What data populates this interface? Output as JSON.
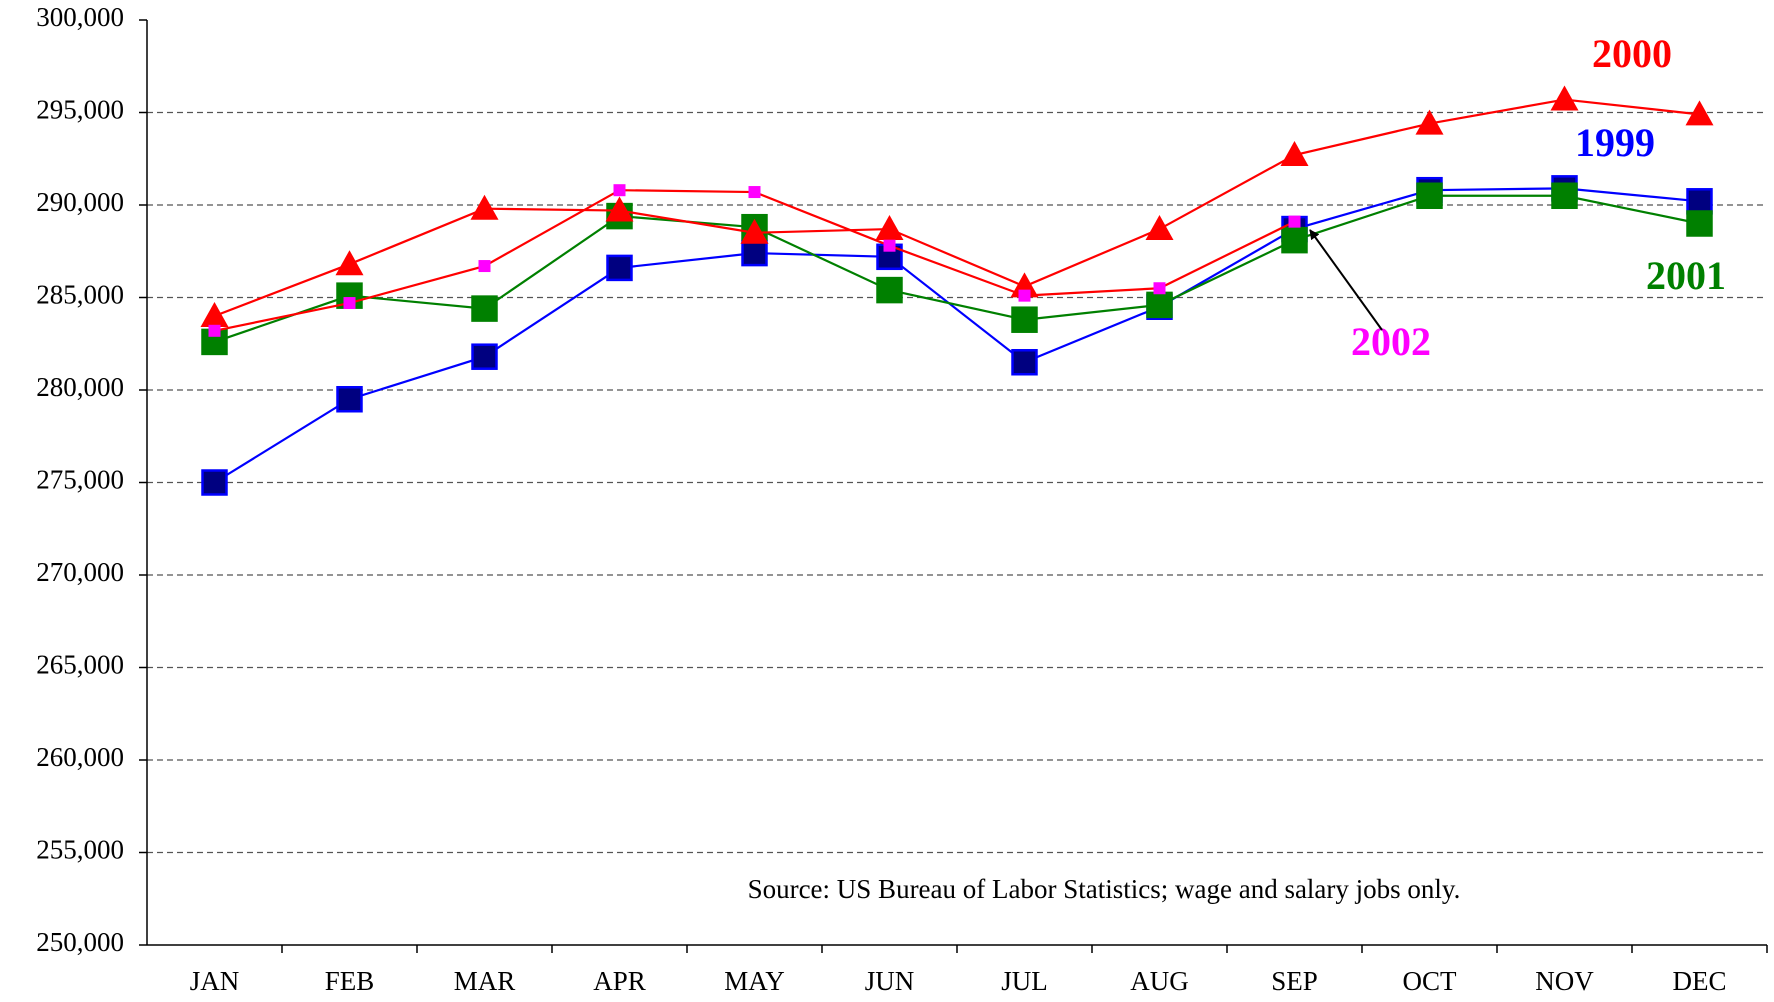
{
  "chart_data": {
    "type": "line",
    "categories": [
      "JAN",
      "FEB",
      "MAR",
      "APR",
      "MAY",
      "JUN",
      "JUL",
      "AUG",
      "SEP",
      "OCT",
      "NOV",
      "DEC"
    ],
    "series": [
      {
        "name": "1999",
        "color": "#0000ff",
        "marker": "square",
        "marker_color": "#000080",
        "values": [
          275000,
          279500,
          281800,
          286600,
          287400,
          287200,
          281500,
          284500,
          288700,
          290800,
          290900,
          290200
        ]
      },
      {
        "name": "2001",
        "color": "#008000",
        "marker": "square",
        "marker_color": "#008000",
        "values": [
          282600,
          285100,
          284400,
          289400,
          288800,
          285400,
          283800,
          284600,
          288100,
          290500,
          290500,
          289000
        ]
      },
      {
        "name": "2000",
        "color": "#ff0000",
        "marker": "triangle",
        "marker_color": "#ff0000",
        "values": [
          284000,
          286800,
          289800,
          289700,
          288500,
          288700,
          285600,
          288700,
          292700,
          294400,
          295700,
          294900
        ]
      },
      {
        "name": "2002",
        "color": "#ff0000",
        "marker": "small-square",
        "marker_color": "#ff00ff",
        "values": [
          283200,
          284700,
          286700,
          290800,
          290700,
          287800,
          285100,
          285500,
          289100,
          null,
          null,
          null
        ]
      }
    ],
    "ylim": [
      250000,
      300000
    ],
    "yticks": [
      {
        "value": 250000,
        "label": "250,000"
      },
      {
        "value": 255000,
        "label": "255,000"
      },
      {
        "value": 260000,
        "label": "260,000"
      },
      {
        "value": 265000,
        "label": "265,000"
      },
      {
        "value": 270000,
        "label": "270,000"
      },
      {
        "value": 275000,
        "label": "275,000"
      },
      {
        "value": 280000,
        "label": "280,000"
      },
      {
        "value": 285000,
        "label": "285,000"
      },
      {
        "value": 290000,
        "label": "290,000"
      },
      {
        "value": 295000,
        "label": "295,000"
      },
      {
        "value": 300000,
        "label": "300,000"
      }
    ],
    "grid": true,
    "annotation": "Source: US Bureau of Labor Statistics; wage and salary jobs only."
  }
}
